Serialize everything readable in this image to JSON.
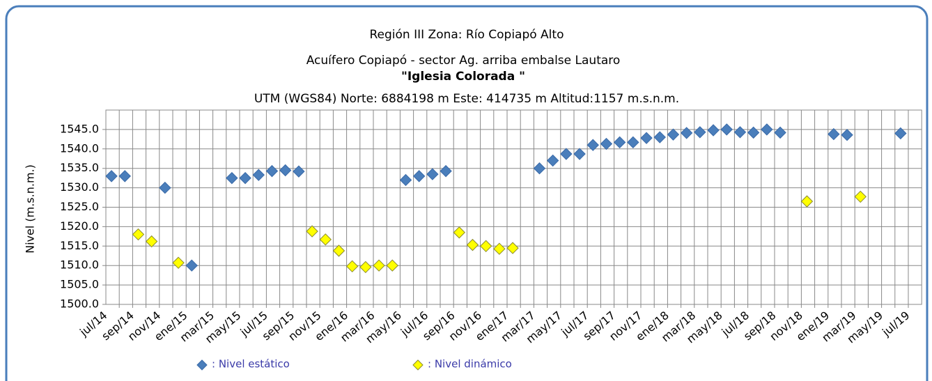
{
  "chart_data": {
    "type": "scatter",
    "title": "Región III  Zona: Río Copiapó Alto",
    "subtitle": "Acuífero Copiapó - sector Ag. arriba embalse Lautaro",
    "station": "\"Iglesia Colorada \"",
    "location": "UTM (WGS84) Norte: 6884198 m    Este: 414735 m Altitud:1157 m.s.n.m.",
    "y_label": "Nivel (m.s.n.m.)",
    "categories": [
      "jul/14",
      null,
      "sep/14",
      null,
      "nov/14",
      null,
      "ene/15",
      null,
      "mar/15",
      null,
      "may/15",
      null,
      "jul/15",
      null,
      "sep/15",
      null,
      "nov/15",
      null,
      "ene/16",
      null,
      "mar/16",
      null,
      "may/16",
      null,
      "jul/16",
      null,
      "sep/16",
      null,
      "nov/16",
      null,
      "ene/17",
      null,
      "mar/17",
      null,
      "may/17",
      null,
      "jul/17",
      null,
      "sep/17",
      null,
      "nov/17",
      null,
      "ene/18",
      null,
      "mar/18",
      null,
      "may/18",
      null,
      "jul/18",
      null,
      "sep/18",
      null,
      "nov/18",
      null,
      "ene/19",
      null,
      "mar/19",
      null,
      "may/19",
      null,
      "jul/19"
    ],
    "series": [
      {
        "name": ": Nivel estático",
        "color": "#4a7ebb",
        "values": [
          1533,
          1533,
          null,
          null,
          1530,
          null,
          1510,
          null,
          null,
          1532.5,
          1532.5,
          1533.3,
          1534.3,
          1534.5,
          1534.2,
          null,
          null,
          null,
          null,
          null,
          null,
          null,
          1532,
          1533,
          1533.5,
          1534.3,
          null,
          null,
          null,
          null,
          null,
          null,
          1535,
          1537,
          1538.7,
          1538.7,
          1541,
          1541.3,
          1541.7,
          1541.7,
          1542.8,
          1543,
          1543.7,
          1544.1,
          1544.3,
          1544.8,
          1545,
          1544.3,
          1544.2,
          1545,
          1544.2,
          null,
          null,
          null,
          1543.8,
          1543.6,
          null,
          null,
          null,
          1544,
          null
        ]
      },
      {
        "name": ": Nivel dinámico",
        "color": "#ffff00",
        "values": [
          null,
          null,
          1518,
          1516.2,
          null,
          1510.7,
          null,
          null,
          null,
          null,
          null,
          null,
          null,
          null,
          null,
          1518.8,
          1516.7,
          1513.8,
          1509.8,
          1509.6,
          1510,
          1510,
          null,
          null,
          null,
          null,
          1518.5,
          1515.3,
          1515,
          1514.3,
          1514.5,
          null,
          null,
          null,
          null,
          null,
          null,
          null,
          null,
          null,
          null,
          null,
          null,
          null,
          null,
          null,
          null,
          null,
          null,
          null,
          null,
          null,
          1526.5,
          null,
          null,
          null,
          1527.7,
          null,
          null,
          null,
          null
        ]
      }
    ],
    "ylim": [
      1500,
      1550
    ],
    "yticks": [
      {
        "value": 1500,
        "label": "1500.0"
      },
      {
        "value": 1505,
        "label": "1505.0"
      },
      {
        "value": 1510,
        "label": "1510.0"
      },
      {
        "value": 1515,
        "label": "1515.0"
      },
      {
        "value": 1520,
        "label": "1520.0"
      },
      {
        "value": 1525,
        "label": "1525.0"
      },
      {
        "value": 1530,
        "label": "1530.0"
      },
      {
        "value": 1535,
        "label": "1535.0"
      },
      {
        "value": 1540,
        "label": "1540.0"
      },
      {
        "value": 1545,
        "label": "1545.0"
      }
    ],
    "grid": true
  }
}
